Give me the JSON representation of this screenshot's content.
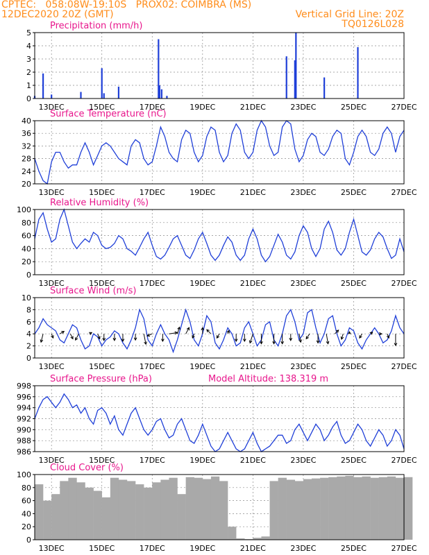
{
  "header": {
    "line1_left": "CPTEC:   058:08W-19:10S   PROX02: COIMBRA (MS)",
    "line2_left": "12DEC2020 20Z (GMT)",
    "line2_right": "Vertical Grid Line: 20Z",
    "line3_right": "TQ0126L028"
  },
  "colors": {
    "header": "#ff8c1a",
    "panel_title": "#e8168c",
    "series": "#1f3fd8",
    "cloud": "#a9a9a9",
    "wind_arrow": "#000000"
  },
  "x_axis": {
    "tick_labels": [
      "13DEC",
      "15DEC",
      "17DEC",
      "19DEC",
      "21DEC",
      "23DEC",
      "25DEC",
      "27DEC"
    ],
    "range_hours": [
      0,
      352
    ]
  },
  "chart_data": [
    {
      "type": "bar",
      "title": "Precipitation (mm/h)",
      "ylim": [
        0,
        5
      ],
      "yticks": [
        "0",
        "1",
        "2",
        "3",
        "4",
        "5"
      ],
      "series": [
        {
          "t": [
            0,
            8,
            16,
            44,
            64,
            66,
            80,
            118,
            119,
            121,
            126,
            240,
            248,
            249,
            276,
            308
          ],
          "v": [
            0.2,
            1.9,
            0.3,
            0.5,
            2.3,
            0.4,
            0.9,
            4.5,
            1.0,
            0.7,
            0.2,
            3.2,
            2.9,
            5.0,
            1.6,
            3.9
          ]
        }
      ]
    },
    {
      "type": "line",
      "title": "Surface Temperature (nC)",
      "ylim": [
        20,
        40
      ],
      "yticks": [
        "20",
        "24",
        "28",
        "32",
        "36",
        "40"
      ],
      "series": [
        {
          "t": [
            0,
            4,
            8,
            12,
            16,
            20,
            24,
            28,
            32,
            36,
            40,
            44,
            48,
            52,
            56,
            60,
            64,
            68,
            72,
            76,
            80,
            84,
            88,
            92,
            96,
            100,
            104,
            108,
            112,
            116,
            120,
            124,
            128,
            132,
            136,
            140,
            144,
            148,
            152,
            156,
            160,
            164,
            168,
            172,
            176,
            180,
            184,
            188,
            192,
            196,
            200,
            204,
            208,
            212,
            216,
            220,
            224,
            228,
            232,
            236,
            240,
            244,
            248,
            252,
            256,
            260,
            264,
            268,
            272,
            276,
            280,
            284,
            288,
            292,
            296,
            300,
            304,
            308,
            312,
            316,
            320,
            324,
            328,
            332,
            336,
            340,
            344,
            348,
            352
          ],
          "v": [
            28,
            24,
            21,
            20,
            27,
            30,
            30,
            27,
            25,
            26,
            26,
            30,
            33,
            30,
            26,
            29,
            32,
            33,
            32,
            30,
            28,
            27,
            26,
            32,
            34,
            33,
            28,
            26,
            27,
            32,
            38,
            35,
            30,
            28,
            27,
            34,
            37,
            36,
            30,
            27,
            29,
            35,
            38,
            37,
            30,
            27,
            29,
            36,
            39,
            37,
            30,
            28,
            30,
            37,
            40,
            38,
            32,
            29,
            30,
            38,
            40,
            39,
            31,
            27,
            29,
            34,
            36,
            35,
            30,
            29,
            31,
            35,
            37,
            36,
            28,
            26,
            30,
            35,
            37,
            35,
            30,
            29,
            31,
            36,
            38,
            36,
            30,
            35,
            37
          ]
        }
      ]
    },
    {
      "type": "line",
      "title": "Relative Humidity (%)",
      "ylim": [
        0,
        100
      ],
      "yticks": [
        "0",
        "20",
        "40",
        "60",
        "80",
        "100"
      ],
      "series": [
        {
          "t": [
            0,
            4,
            8,
            12,
            16,
            20,
            24,
            28,
            32,
            36,
            40,
            44,
            48,
            52,
            56,
            60,
            64,
            68,
            72,
            76,
            80,
            84,
            88,
            92,
            96,
            100,
            104,
            108,
            112,
            116,
            120,
            124,
            128,
            132,
            136,
            140,
            144,
            148,
            152,
            156,
            160,
            164,
            168,
            172,
            176,
            180,
            184,
            188,
            192,
            196,
            200,
            204,
            208,
            212,
            216,
            220,
            224,
            228,
            232,
            236,
            240,
            244,
            248,
            252,
            256,
            260,
            264,
            268,
            272,
            276,
            280,
            284,
            288,
            292,
            296,
            300,
            304,
            308,
            312,
            316,
            320,
            324,
            328,
            332,
            336,
            340,
            344,
            348,
            352
          ],
          "v": [
            55,
            85,
            95,
            70,
            50,
            55,
            85,
            100,
            75,
            50,
            40,
            48,
            55,
            50,
            65,
            60,
            45,
            40,
            42,
            48,
            60,
            55,
            40,
            36,
            30,
            42,
            55,
            65,
            45,
            28,
            24,
            30,
            42,
            55,
            60,
            45,
            30,
            25,
            38,
            55,
            65,
            48,
            30,
            22,
            30,
            45,
            58,
            50,
            30,
            22,
            30,
            55,
            70,
            55,
            30,
            20,
            28,
            45,
            62,
            50,
            30,
            24,
            35,
            60,
            75,
            65,
            40,
            28,
            40,
            70,
            82,
            65,
            38,
            30,
            40,
            65,
            85,
            60,
            35,
            30,
            38,
            55,
            65,
            58,
            40,
            25,
            30,
            55,
            35
          ]
        }
      ]
    },
    {
      "type": "line",
      "title": "Surface Wind (m/s)",
      "ylim": [
        0,
        10
      ],
      "yticks": [
        "0",
        "2",
        "4",
        "6",
        "8",
        "10"
      ],
      "series": [
        {
          "t": [
            0,
            4,
            8,
            12,
            16,
            20,
            24,
            28,
            32,
            36,
            40,
            44,
            48,
            52,
            56,
            60,
            64,
            68,
            72,
            76,
            80,
            84,
            88,
            92,
            96,
            100,
            104,
            108,
            112,
            116,
            120,
            124,
            128,
            132,
            136,
            140,
            144,
            148,
            152,
            156,
            160,
            164,
            168,
            172,
            176,
            180,
            184,
            188,
            192,
            196,
            200,
            204,
            208,
            212,
            216,
            220,
            224,
            228,
            232,
            236,
            240,
            244,
            248,
            252,
            256,
            260,
            264,
            268,
            272,
            276,
            280,
            284,
            288,
            292,
            296,
            300,
            304,
            308,
            312,
            316,
            320,
            324,
            328,
            332,
            336,
            340,
            344,
            348,
            352
          ],
          "v": [
            4,
            5,
            6.5,
            5.5,
            5,
            4.5,
            3,
            2.5,
            4,
            5.5,
            5,
            3,
            1.5,
            2,
            4,
            3.5,
            2,
            3,
            3.5,
            4.5,
            4,
            2.5,
            1.5,
            3,
            5,
            8,
            6.5,
            3,
            2,
            4,
            5.5,
            4,
            3,
            1,
            3,
            5.5,
            8,
            6,
            3,
            2,
            4,
            7,
            6,
            2.5,
            1.5,
            3,
            5,
            4,
            2,
            2.5,
            5,
            6,
            4,
            2,
            3,
            5.5,
            6,
            3,
            2,
            4,
            7,
            8,
            6,
            3,
            4,
            7.5,
            8,
            5,
            2.5,
            4,
            6.5,
            7,
            4,
            2,
            3,
            5,
            4.5,
            2.5,
            1.5,
            3,
            4,
            5,
            4,
            2.5,
            3,
            4.5,
            7,
            5,
            4
          ]
        },
        {
          "name": "",
          "t": [
            8,
            16,
            24,
            34,
            42,
            52,
            60,
            66,
            76,
            84,
            96,
            104,
            112,
            122,
            128,
            136,
            144,
            152,
            160,
            168,
            176,
            184,
            192,
            200,
            208,
            216,
            228,
            236,
            244,
            252,
            262,
            270,
            278,
            286,
            294,
            300,
            312,
            320,
            328,
            336,
            344
          ],
          "u": [
            -0.5,
            0.4,
            1,
            0.6,
            -0.8,
            0.6,
            0.5,
            0,
            0,
            0,
            0,
            0.5,
            -1.2,
            0,
            2,
            0.5,
            0.8,
            -0.4,
            0,
            -1,
            -0.6,
            0.3,
            0,
            0,
            -0.7,
            0,
            0,
            0,
            0,
            0.4,
            -0.8,
            0,
            0.4,
            0.9,
            -0.4,
            0,
            -0.6,
            0.5,
            0.7,
            0.4,
            0
          ]
        },
        {
          "name": "",
          "t": [
            8,
            16,
            24,
            34,
            42,
            52,
            60,
            66,
            76,
            84,
            96,
            104,
            112,
            122,
            128,
            136,
            144,
            152,
            160,
            168,
            176,
            184,
            192,
            200,
            208,
            216,
            228,
            236,
            244,
            252,
            262,
            270,
            278,
            286,
            294,
            300,
            312,
            320,
            328,
            336,
            344
          ],
          "v": [
            -2,
            -1,
            0.6,
            -1.2,
            -1.5,
            0.3,
            -1.2,
            -1.6,
            -1.6,
            -1.8,
            -1.5,
            -2.5,
            -0.5,
            -1.8,
            0.3,
            1.6,
            1.5,
            -1,
            1.5,
            1,
            -1,
            0.8,
            -1.8,
            -1.8,
            -2.2,
            -2.4,
            -2.4,
            -2.4,
            -1.6,
            -2,
            -1.2,
            -2.2,
            -2.4,
            0.9,
            -1.3,
            0.5,
            -1,
            0.4,
            0,
            -1,
            -2.8
          ]
        }
      ]
    },
    {
      "type": "line",
      "title": "Surface Pressure (hPa)",
      "subtitle": "Model Altitude: 138.319 m",
      "ylim": [
        986,
        998
      ],
      "yticks": [
        "986",
        "988",
        "990",
        "992",
        "994",
        "996",
        "998"
      ],
      "series": [
        {
          "t": [
            0,
            4,
            8,
            12,
            16,
            20,
            24,
            28,
            32,
            36,
            40,
            44,
            48,
            52,
            56,
            60,
            64,
            68,
            72,
            76,
            80,
            84,
            88,
            92,
            96,
            100,
            104,
            108,
            112,
            116,
            120,
            124,
            128,
            132,
            136,
            140,
            144,
            148,
            152,
            156,
            160,
            164,
            168,
            172,
            176,
            180,
            184,
            188,
            192,
            196,
            200,
            204,
            208,
            212,
            216,
            220,
            224,
            228,
            232,
            236,
            240,
            244,
            248,
            252,
            256,
            260,
            264,
            268,
            272,
            276,
            280,
            284,
            288,
            292,
            296,
            300,
            304,
            308,
            312,
            316,
            320,
            324,
            328,
            332,
            336,
            340,
            344,
            348,
            352
          ],
          "v": [
            992,
            994,
            995.5,
            996,
            995,
            994,
            995,
            996.5,
            995.5,
            994,
            994.5,
            993,
            994,
            992,
            991,
            993.5,
            994,
            993,
            991,
            992.5,
            990,
            989,
            991,
            993,
            994,
            992,
            990,
            989,
            990,
            991.5,
            992,
            990,
            988.5,
            989,
            991,
            992,
            990,
            988,
            987.5,
            989,
            991,
            989,
            987,
            986,
            986.5,
            988,
            989.5,
            988,
            986.5,
            986,
            986.5,
            988,
            989.5,
            987.5,
            986,
            986.5,
            987,
            988,
            989,
            989,
            987.5,
            988,
            990,
            991,
            989.5,
            988,
            989.5,
            991,
            990,
            988,
            989,
            990.5,
            991.5,
            989,
            987.5,
            988,
            989.5,
            991,
            990,
            988,
            987,
            988.5,
            990,
            989,
            987,
            988,
            990,
            989,
            986.5
          ]
        }
      ]
    },
    {
      "type": "bar",
      "title": "Cloud Cover (%)",
      "ylim": [
        0,
        100
      ],
      "yticks": [
        "0",
        "20",
        "40",
        "60",
        "80",
        "100"
      ],
      "series": [
        {
          "t": [
            0,
            8,
            16,
            24,
            32,
            40,
            48,
            56,
            64,
            72,
            80,
            88,
            96,
            104,
            112,
            120,
            128,
            136,
            144,
            152,
            160,
            168,
            176,
            184,
            192,
            200,
            208,
            216,
            224,
            232,
            240,
            248,
            256,
            264,
            272,
            280,
            288,
            296,
            304,
            312,
            320,
            328,
            336,
            344,
            352
          ],
          "v": [
            85,
            60,
            70,
            90,
            95,
            88,
            80,
            75,
            65,
            95,
            92,
            90,
            85,
            80,
            88,
            92,
            95,
            70,
            96,
            95,
            93,
            97,
            90,
            20,
            2,
            1,
            3,
            5,
            90,
            95,
            92,
            90,
            93,
            94,
            95,
            96,
            97,
            98,
            96,
            97,
            95,
            96,
            97,
            95,
            96
          ]
        }
      ]
    }
  ]
}
